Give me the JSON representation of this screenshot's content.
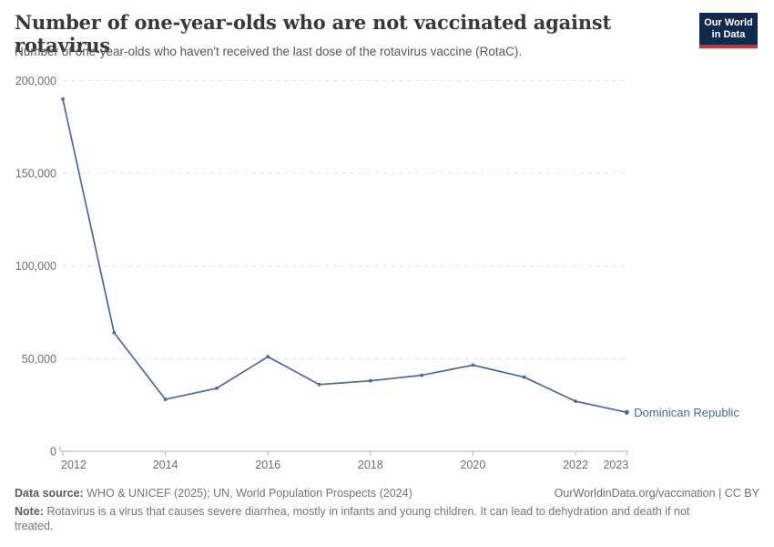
{
  "header": {
    "title": "Number of one-year-olds who are not vaccinated against rotavirus",
    "subtitle": "Number of one-year-olds who haven't received the last dose of the rotavirus vaccine (RotaC).",
    "logo": {
      "line1": "Our World",
      "line2": "in Data",
      "bg_color": "#12294e",
      "accent_color": "#cf3235"
    }
  },
  "chart_data": {
    "type": "line",
    "title": "Number of one-year-olds who are not vaccinated against rotavirus",
    "xlabel": "",
    "ylabel": "",
    "xlim": [
      2012,
      2023
    ],
    "ylim": [
      0,
      200000
    ],
    "grid": "horizontal-dashed",
    "legend_position": "end-of-line-label",
    "x": [
      2012,
      2013,
      2014,
      2015,
      2016,
      2017,
      2018,
      2019,
      2020,
      2021,
      2022,
      2023
    ],
    "series": [
      {
        "name": "Dominican Republic",
        "color": "#4c689c",
        "values": [
          190000,
          64000,
          28000,
          34000,
          51000,
          36000,
          38000,
          41000,
          46500,
          40000,
          27000,
          21000
        ]
      }
    ],
    "x_ticks": [
      2012,
      2014,
      2016,
      2018,
      2020,
      2022,
      2023
    ],
    "x_tick_labels": [
      "2012",
      "2014",
      "2016",
      "2018",
      "2020",
      "2022",
      "2023"
    ],
    "y_ticks": [
      0,
      50000,
      100000,
      150000,
      200000
    ],
    "y_tick_labels": [
      "0",
      "50,000",
      "100,000",
      "150,000",
      "200,000"
    ],
    "axis_color": "#b3b3b3",
    "gridline_color": "#e3e3e3",
    "tick_label_color": "#6e6e6e"
  },
  "footer": {
    "data_source_label": "Data source:",
    "data_source_text": "WHO & UNICEF (2025); UN, World Population Prospects (2024)",
    "link_text": "OurWorldinData.org/vaccination | CC BY",
    "note_label": "Note:",
    "note_text": "Rotavirus is a virus that causes severe diarrhea, mostly in infants and young children. It can lead to dehydration and death if not treated."
  }
}
